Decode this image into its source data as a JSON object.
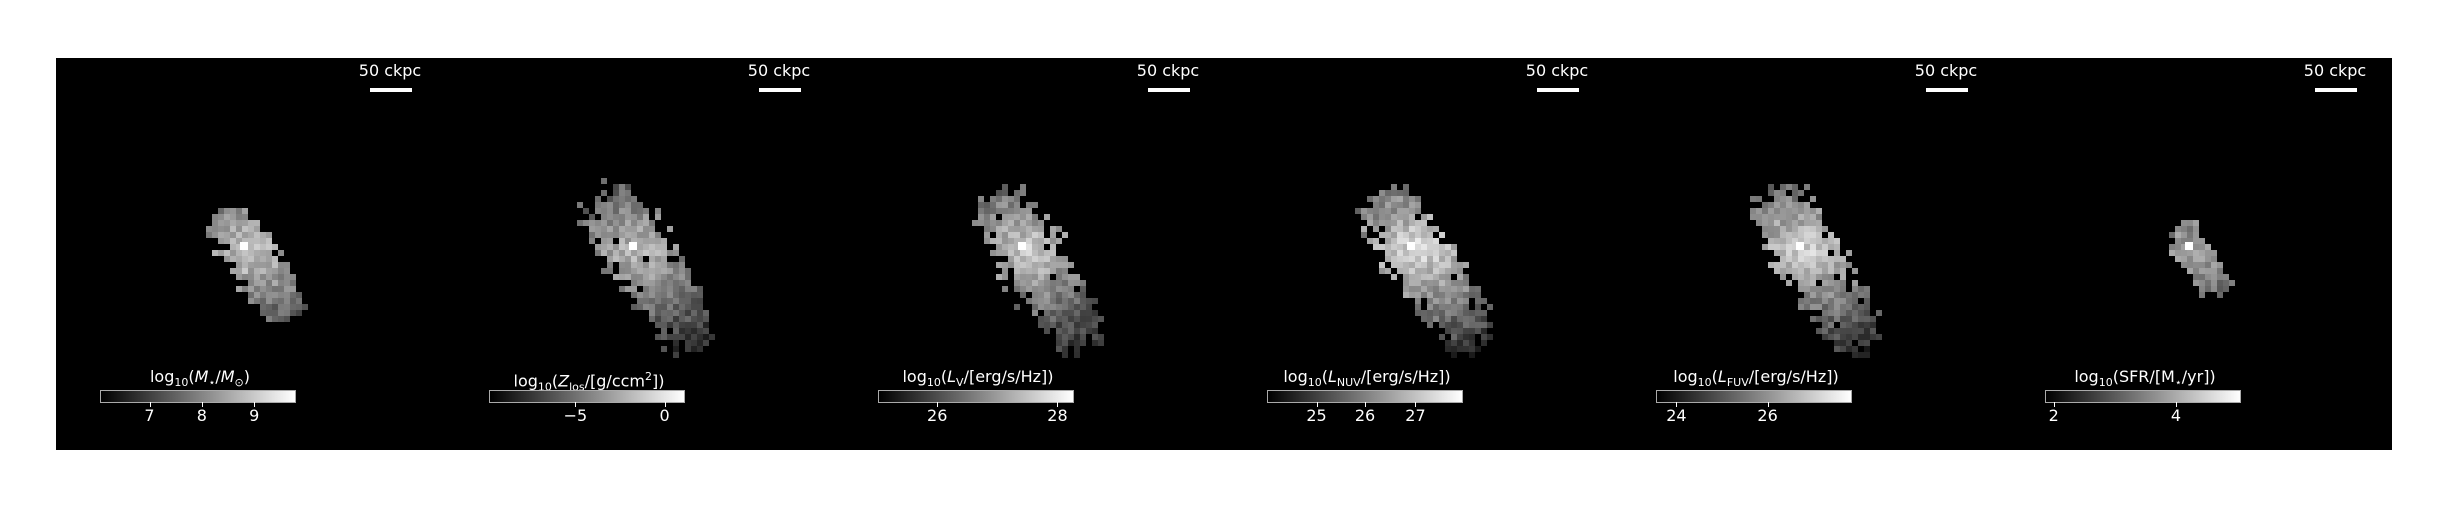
{
  "scale_label": "50 ckpc",
  "panels": [
    {
      "id": "stellar-mass",
      "cbar_parts": [
        "log",
        "10",
        "(",
        "M",
        "⋆",
        "/",
        "M",
        "⊙",
        ")"
      ],
      "cbar_html": "log<sub>10</sub>(<i>M</i><sub>⋆</sub>/<i>M</i><sub>⊙</sub>)",
      "ticks": [
        "7",
        "8",
        "9"
      ],
      "tick_fracs": [
        0.25,
        0.52,
        0.79
      ],
      "intensity": 0.85,
      "spread": 0.7
    },
    {
      "id": "metallicity",
      "cbar_parts": [
        "log",
        "10",
        "(",
        "Z",
        "los",
        "/[g/ccm",
        "2",
        "])"
      ],
      "cbar_html": "log<sub>10</sub>(<i>Z</i><sub>los</sub>/[g/ccm<sup>2</sup>])",
      "ticks": [
        "−5",
        "0"
      ],
      "tick_fracs": [
        0.44,
        0.9
      ],
      "intensity": 0.8,
      "spread": 1.0
    },
    {
      "id": "v-band",
      "cbar_parts": [
        "log",
        "10",
        "(",
        "L",
        "V",
        "/[erg/s/Hz])"
      ],
      "cbar_html": "log<sub>10</sub>(<i>L</i><sub>V</sub>/[erg/s/Hz])",
      "ticks": [
        "26",
        "28"
      ],
      "tick_fracs": [
        0.3,
        0.92
      ],
      "intensity": 0.85,
      "spread": 1.0
    },
    {
      "id": "nuv",
      "cbar_parts": [
        "log",
        "10",
        "(",
        "L",
        "NUV",
        "/[erg/s/Hz])"
      ],
      "cbar_html": "log<sub>10</sub>(<i>L</i><sub>NUV</sub>/[erg/s/Hz])",
      "ticks": [
        "25",
        "26",
        "27"
      ],
      "tick_fracs": [
        0.25,
        0.5,
        0.76
      ],
      "intensity": 0.95,
      "spread": 1.0
    },
    {
      "id": "fuv",
      "cbar_parts": [
        "log",
        "10",
        "(",
        "L",
        "FUV",
        "/[erg/s/Hz])"
      ],
      "cbar_html": "log<sub>10</sub>(<i>L</i><sub>FUV</sub>/[erg/s/Hz])",
      "ticks": [
        "24",
        "26"
      ],
      "tick_fracs": [
        0.1,
        0.57
      ],
      "intensity": 0.9,
      "spread": 1.0
    },
    {
      "id": "sfr",
      "cbar_parts": [
        "log",
        "10",
        "(SFR/[M",
        "⋆",
        "/yr])"
      ],
      "cbar_html": "log<sub>10</sub>(SFR/[M<sub>⋆</sub>/yr])",
      "ticks": [
        "2",
        "4"
      ],
      "tick_fracs": [
        0.04,
        0.67
      ],
      "intensity": 0.7,
      "spread": 0.45
    }
  ]
}
